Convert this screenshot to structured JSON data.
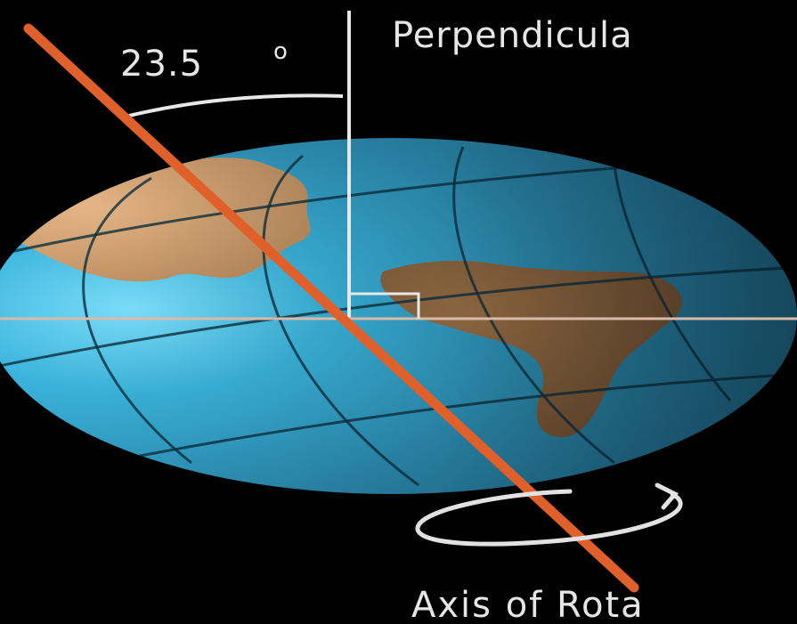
{
  "labels": {
    "angle_value": "23.5",
    "angle_unit": "o",
    "perpendicular": "Perpendicula",
    "axis_of_rotation": "Axis of Rota"
  },
  "colors": {
    "background": "#000000",
    "ocean": "#2a8fb3",
    "land": "#b58a5a",
    "axis": "#e0602c",
    "guide_lines": "#e8e8e8",
    "text": "#e6e6e6"
  },
  "axial_tilt_degrees": 23.5
}
